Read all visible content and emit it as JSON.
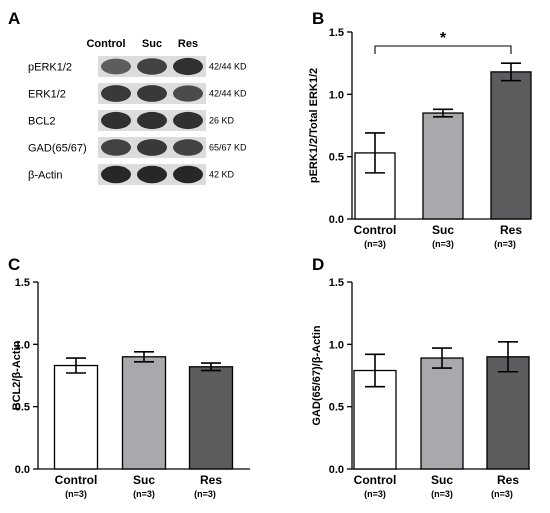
{
  "panel_a": {
    "letter": "A",
    "lanes": [
      "Control",
      "Suc",
      "Res"
    ],
    "rows": [
      {
        "label": "pERK1/2",
        "kd": "42/44 KD",
        "intensity": [
          0.65,
          0.8,
          0.9
        ]
      },
      {
        "label": "ERK1/2",
        "kd": "42/44 KD",
        "intensity": [
          0.85,
          0.85,
          0.75
        ]
      },
      {
        "label": "BCL2",
        "kd": "26 KD",
        "intensity": [
          0.9,
          0.9,
          0.9
        ]
      },
      {
        "label": "GAD(65/67)",
        "kd": "65/67 KD",
        "intensity": [
          0.8,
          0.85,
          0.8
        ]
      },
      {
        "label": "β-Actin",
        "kd": "42 KD",
        "intensity": [
          0.95,
          0.95,
          0.95
        ]
      }
    ]
  },
  "chart_data": [
    {
      "panel": "B",
      "type": "bar",
      "categories": [
        "Control",
        "Suc",
        "Res"
      ],
      "n_labels": [
        "(n=3)",
        "(n=3)",
        "(n=3)"
      ],
      "values": [
        0.53,
        0.85,
        1.18
      ],
      "errors": [
        0.16,
        0.03,
        0.07
      ],
      "colors": [
        "#ffffff",
        "#a9a9ad",
        "#5c5c5e"
      ],
      "ylabel": "pERK1/2/Total ERK1/2",
      "ylim": [
        0,
        1.5
      ],
      "yticks": [
        "0.0",
        "0.5",
        "1.0",
        "1.5"
      ],
      "significance": {
        "from": 0,
        "to": 2,
        "label": "*"
      }
    },
    {
      "panel": "C",
      "type": "bar",
      "categories": [
        "Control",
        "Suc",
        "Res"
      ],
      "n_labels": [
        "(n=3)",
        "(n=3)",
        "(n=3)"
      ],
      "values": [
        0.83,
        0.9,
        0.82
      ],
      "errors": [
        0.06,
        0.04,
        0.03
      ],
      "colors": [
        "#ffffff",
        "#a9a9ad",
        "#5c5c5e"
      ],
      "ylabel": "BCL2/β-Actin",
      "ylim": [
        0,
        1.5
      ],
      "yticks": [
        "0.0",
        "0.5",
        "1.0",
        "1.5"
      ]
    },
    {
      "panel": "D",
      "type": "bar",
      "categories": [
        "Control",
        "Suc",
        "Res"
      ],
      "n_labels": [
        "(n=3)",
        "(n=3)",
        "(n=3)"
      ],
      "values": [
        0.79,
        0.89,
        0.9
      ],
      "errors": [
        0.13,
        0.08,
        0.12
      ],
      "colors": [
        "#ffffff",
        "#a9a9ad",
        "#5c5c5e"
      ],
      "ylabel": "GAD(65/67)/β-Actin",
      "ylim": [
        0,
        1.5
      ],
      "yticks": [
        "0.0",
        "0.5",
        "1.0",
        "1.5"
      ]
    }
  ]
}
